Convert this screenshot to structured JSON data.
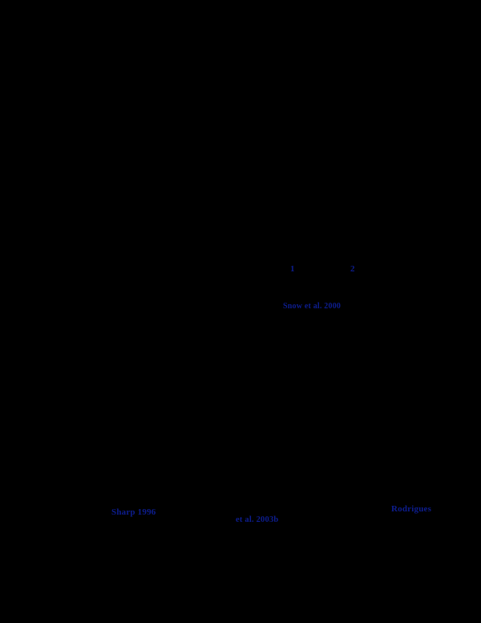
{
  "page": {
    "background_color": "#000000",
    "link_color": "#0d1d8f"
  },
  "links": {
    "affiliation_superscript_1": "1",
    "affiliation_superscript_2": "2",
    "citation_mid": "Snow et al. 2000",
    "citation_bottom_left": "Sharp 1996",
    "citation_bottom_center": "et al. 2003b",
    "citation_bottom_right": "Rodrigues"
  }
}
